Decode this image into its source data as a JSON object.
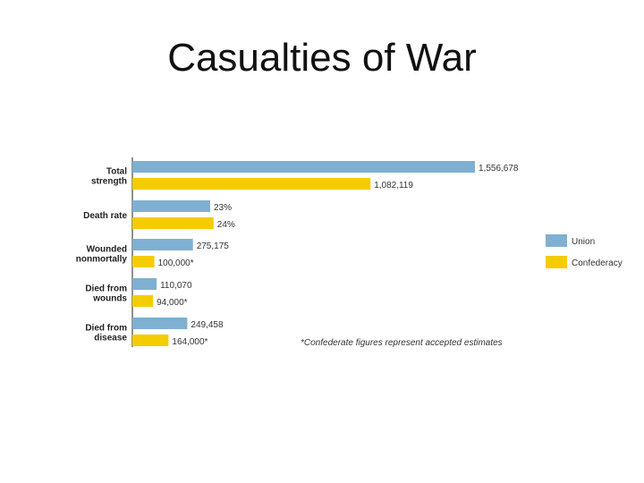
{
  "slide": {
    "title": "Casualties of War"
  },
  "chart_data": {
    "type": "bar",
    "orientation": "horizontal",
    "title": "",
    "categories": [
      [
        "Total",
        "strength"
      ],
      [
        "Death rate"
      ],
      [
        "Wounded",
        "nonmortally"
      ],
      [
        "Died from",
        "wounds"
      ],
      [
        "Died from",
        "disease"
      ]
    ],
    "series": [
      {
        "name": "Union",
        "color": "#7fb0d2",
        "values": [
          1556678,
          23,
          275175,
          110070,
          249458
        ],
        "labels": [
          "1,556,678",
          "23%",
          "275,175",
          "110,070",
          "249,458"
        ]
      },
      {
        "name": "Confederacy",
        "color": "#f5cc00",
        "values": [
          1082119,
          24,
          100000,
          94000,
          164000
        ],
        "labels": [
          "1,082,119",
          "24%",
          "100,000*",
          "94,000*",
          "164,000*"
        ]
      }
    ],
    "legend_position": "right",
    "footnote": "*Confederate figures represent accepted estimates",
    "grid": false
  }
}
